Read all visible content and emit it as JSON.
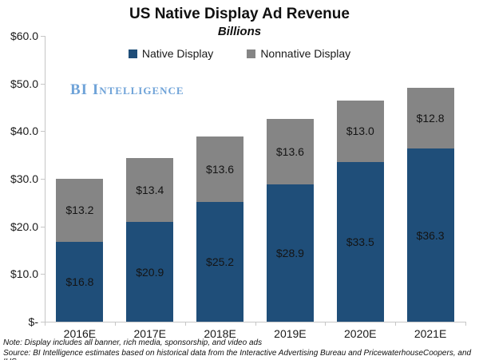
{
  "title": "US Native Display Ad Revenue",
  "subtitle": "Billions",
  "logo_text": "BI Intelligence",
  "note": "Note: Display includes all banner, rich media, sponsorship, and video ads",
  "source": "Source: BI Intelligence estimates based on historical data from the Interactive Advertising Bureau and PricewaterhouseCoopers, and IHS",
  "colors": {
    "native": "#1F4E79",
    "nonnative": "#858585",
    "logo_blue": "#6FA3D8",
    "axis_gray": "#C6C6C6"
  },
  "chart_data": {
    "type": "bar",
    "stacked": true,
    "title": "US Native Display Ad Revenue",
    "subtitle": "Billions",
    "xlabel": "",
    "ylabel": "",
    "ylim": [
      0,
      60
    ],
    "grid": false,
    "legend_position": "top",
    "categories": [
      "2016E",
      "2017E",
      "2018E",
      "2019E",
      "2020E",
      "2021E"
    ],
    "series": [
      {
        "name": "Native Display",
        "color": "#1F4E79",
        "values": [
          16.8,
          20.9,
          25.2,
          28.9,
          33.5,
          36.3
        ],
        "labels": [
          "$16.8",
          "$20.9",
          "$25.2",
          "$28.9",
          "$33.5",
          "$36.3"
        ]
      },
      {
        "name": "Nonnative Display",
        "color": "#858585",
        "values": [
          13.2,
          13.4,
          13.6,
          13.6,
          13.0,
          12.8
        ],
        "labels": [
          "$13.2",
          "$13.4",
          "$13.6",
          "$13.6",
          "$13.0",
          "$12.8"
        ]
      }
    ],
    "yticks": [
      {
        "value": 0,
        "label": "$-"
      },
      {
        "value": 10,
        "label": "$10.0"
      },
      {
        "value": 20,
        "label": "$20.0"
      },
      {
        "value": 30,
        "label": "$30.0"
      },
      {
        "value": 40,
        "label": "$40.0"
      },
      {
        "value": 50,
        "label": "$50.0"
      },
      {
        "value": 60,
        "label": "$60.0"
      }
    ]
  }
}
